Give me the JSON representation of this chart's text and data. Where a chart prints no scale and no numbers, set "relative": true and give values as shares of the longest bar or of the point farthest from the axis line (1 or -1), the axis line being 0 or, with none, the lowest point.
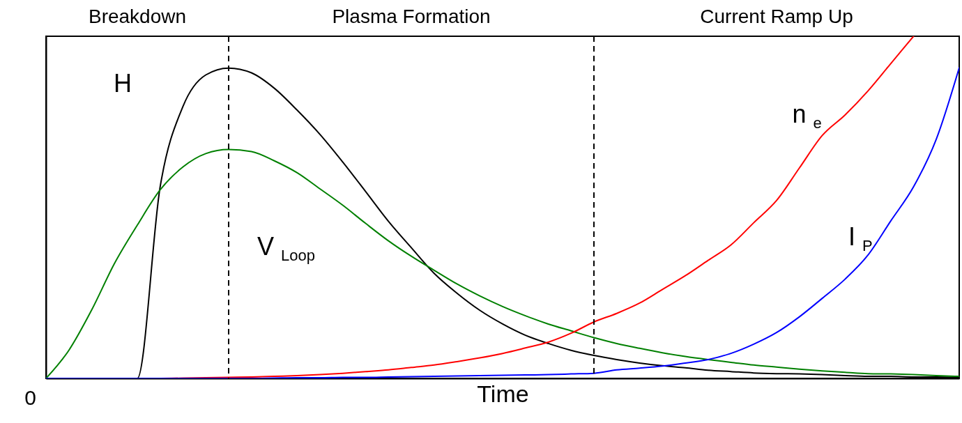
{
  "chart_data": {
    "type": "line",
    "relative": true,
    "xlabel": "Time",
    "categories": [
      null,
      null,
      null,
      null,
      null,
      null,
      null,
      null,
      null,
      null,
      null,
      null,
      null,
      null,
      null,
      null,
      null,
      null,
      null,
      null,
      null,
      null,
      null,
      null,
      null,
      null,
      null,
      null,
      null,
      null,
      null,
      null,
      null,
      null,
      null,
      null,
      null,
      null,
      null,
      null,
      null
    ],
    "series": [
      {
        "name": "H",
        "color": "#000000",
        "values": [
          0,
          0,
          0,
          0,
          0,
          0.56,
          0.795,
          0.887,
          0.907,
          0.893,
          0.848,
          0.784,
          0.713,
          0.632,
          0.546,
          0.459,
          0.382,
          0.307,
          0.249,
          0.199,
          0.159,
          0.126,
          0.102,
          0.082,
          0.067,
          0.055,
          0.045,
          0.037,
          0.031,
          0.024,
          0.02,
          0.016,
          0.014,
          0.013,
          0.011,
          0.008,
          0.006,
          0.006,
          0.004,
          0.004,
          0.002
        ]
      },
      {
        "name": "V$_{Loop}$",
        "color": "#008000",
        "values": [
          0,
          0.082,
          0.2,
          0.336,
          0.448,
          0.551,
          0.618,
          0.657,
          0.669,
          0.663,
          0.636,
          0.601,
          0.554,
          0.506,
          0.453,
          0.402,
          0.357,
          0.316,
          0.276,
          0.241,
          0.21,
          0.183,
          0.159,
          0.139,
          0.119,
          0.102,
          0.088,
          0.075,
          0.064,
          0.055,
          0.047,
          0.039,
          0.033,
          0.027,
          0.022,
          0.018,
          0.014,
          0.013,
          0.011,
          0.008,
          0.006
        ]
      },
      {
        "name": "n$_{e}$",
        "color": "#ff0000",
        "values": [
          null,
          null,
          null,
          null,
          null,
          0,
          0.001,
          0.002,
          0.003,
          0.004,
          0.006,
          0.008,
          0.011,
          0.015,
          0.02,
          0.025,
          0.032,
          0.039,
          0.049,
          0.06,
          0.073,
          0.089,
          0.106,
          0.132,
          0.165,
          0.19,
          0.22,
          0.26,
          0.3,
          0.345,
          0.39,
          0.455,
          0.52,
          0.615,
          0.71,
          0.77,
          0.84,
          0.92,
          1.0,
          null,
          null
        ]
      },
      {
        "name": "I$_{P}$",
        "color": "#0000ff",
        "values": [
          0,
          0,
          0,
          0,
          0,
          0,
          0,
          0,
          0,
          0,
          0.001,
          0.002,
          0.002,
          0.003,
          0.003,
          0.004,
          0.005,
          0.006,
          0.007,
          0.008,
          0.009,
          0.01,
          0.011,
          0.013,
          0.015,
          0.025,
          0.03,
          0.036,
          0.045,
          0.055,
          0.073,
          0.1,
          0.134,
          0.18,
          0.234,
          0.29,
          0.36,
          0.46,
          0.56,
          0.7,
          0.908
        ]
      }
    ],
    "annotations": [
      "Breakdown",
      "Plasma Formation",
      "Current Ramp Up",
      "0"
    ],
    "grid": false,
    "marker": "none",
    "line_style": "solid"
  }
}
